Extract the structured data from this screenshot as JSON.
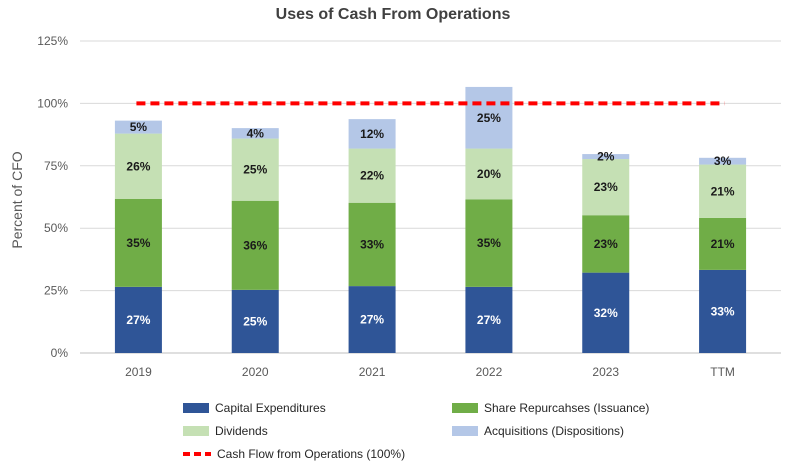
{
  "chart_data": {
    "type": "bar",
    "stacked": true,
    "title": "Uses of Cash From Operations",
    "xlabel": "",
    "ylabel": "Percent of CFO",
    "ylim": [
      0,
      125
    ],
    "yticks": [
      "0%",
      "25%",
      "50%",
      "75%",
      "100%",
      "125%"
    ],
    "ytick_values": [
      0,
      25,
      50,
      75,
      100,
      125
    ],
    "categories": [
      "2019",
      "2020",
      "2021",
      "2022",
      "2023",
      "TTM"
    ],
    "series": [
      {
        "name": "Capital Expenditures",
        "color": "#2f5597",
        "label_color": "#ffffff",
        "values": [
          26.5,
          25.3,
          26.8,
          26.5,
          32.2,
          33.3
        ],
        "labels": [
          "27%",
          "25%",
          "27%",
          "27%",
          "32%",
          "33%"
        ]
      },
      {
        "name": "Share Repurcahses (Issuance)",
        "color": "#70ad47",
        "label_color": "#1a1a1a",
        "values": [
          35.2,
          35.7,
          33.4,
          35.0,
          23.0,
          20.8
        ],
        "labels": [
          "35%",
          "36%",
          "33%",
          "35%",
          "23%",
          "21%"
        ]
      },
      {
        "name": "Dividends",
        "color": "#c5e0b4",
        "label_color": "#1a1a1a",
        "values": [
          26.2,
          24.9,
          21.7,
          20.4,
          22.5,
          21.4
        ],
        "labels": [
          "26%",
          "25%",
          "22%",
          "20%",
          "23%",
          "21%"
        ]
      },
      {
        "name": "Acquisitions (Dispositions)",
        "color": "#b4c7e7",
        "label_color": "#1a1a1a",
        "values": [
          5.2,
          4.2,
          11.8,
          24.7,
          2.0,
          2.7
        ],
        "labels": [
          "5%",
          "4%",
          "12%",
          "25%",
          "2%",
          "3%"
        ]
      }
    ],
    "reference_line": {
      "name": "Cash Flow from Operations (100%)",
      "value": 100,
      "color": "#ff0000",
      "style": "dashed"
    },
    "grid": true,
    "legend_position": "bottom"
  }
}
